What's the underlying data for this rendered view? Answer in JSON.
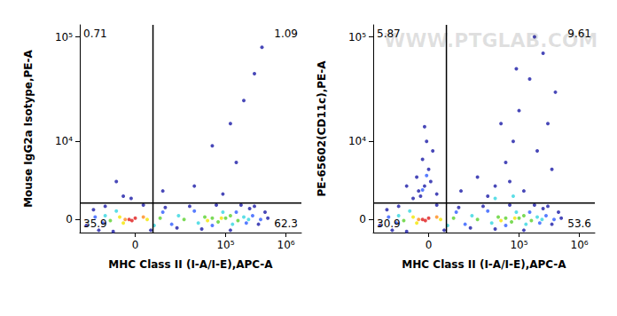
{
  "chart_data": [
    {
      "type": "scatter",
      "x_label": "MHC Class II (I-A/I-E),APC-A",
      "y_label": "Mouse IgG2a Isotype,PE-A",
      "xlim": [
        -26000,
        1800000
      ],
      "ylim": [
        -1100,
        130000
      ],
      "xticks": [
        0,
        {
          "value": 100000,
          "label": "10⁵"
        },
        {
          "value": 1000000,
          "label": "10⁶"
        }
      ],
      "yticks": [
        0,
        {
          "value": 10000,
          "label": "10⁴"
        },
        {
          "value": 100000,
          "label": "10⁵"
        }
      ],
      "gates": {
        "x": 4650,
        "y": 1380
      },
      "quadrants": {
        "top_left": 0.71,
        "top_right": 1.09,
        "bottom_left": 35.9,
        "bottom_right": 62.3
      },
      "points": [
        [
          -20000,
          -500,
          "#1a1aa6"
        ],
        [
          -15000,
          800,
          "#1a1aa6"
        ],
        [
          -12000,
          -900,
          "#1a1aa6"
        ],
        [
          -9000,
          1100,
          "#1a1aa6"
        ],
        [
          -6000,
          -1000,
          "#1a1aa6"
        ],
        [
          2000,
          1200,
          "#1a1aa6"
        ],
        [
          4000,
          -900,
          "#1a1aa6"
        ],
        [
          9000,
          1000,
          "#1a1aa6"
        ],
        [
          15000,
          -700,
          "#1a1aa6"
        ],
        [
          25000,
          1100,
          "#1a1aa6"
        ],
        [
          40000,
          -800,
          "#1a1aa6"
        ],
        [
          70000,
          1200,
          "#1a1aa6"
        ],
        [
          120000,
          -900,
          "#1a1aa6"
        ],
        [
          250000,
          900,
          "#1a1aa6"
        ],
        [
          350000,
          -400,
          "#1a1aa6"
        ],
        [
          450000,
          600,
          "#1a1aa6"
        ],
        [
          300000,
          1100,
          "#1a1aa6"
        ],
        [
          180000,
          1200,
          "#1a1aa6"
        ],
        [
          500000,
          100,
          "#1a1aa6"
        ],
        [
          -3000,
          2000,
          "#1a1aa6"
        ],
        [
          -1000,
          1800,
          "#1a1aa6"
        ],
        [
          8000,
          2500,
          "#1a1aa6"
        ],
        [
          30000,
          3000,
          "#1a1aa6"
        ],
        [
          60000,
          9000,
          "#1a1aa6"
        ],
        [
          120000,
          15000,
          "#1a1aa6"
        ],
        [
          200000,
          25000,
          "#1a1aa6"
        ],
        [
          300000,
          45000,
          "#1a1aa6"
        ],
        [
          150000,
          6000,
          "#1a1aa6"
        ],
        [
          -5000,
          3500,
          "#1a1aa6"
        ],
        [
          400000,
          80000,
          "#1a1aa6"
        ],
        [
          90000,
          2200,
          "#1a1aa6"
        ],
        [
          -14000,
          200,
          "#2f5cff"
        ],
        [
          -10000,
          -300,
          "#2f5cff"
        ],
        [
          8000,
          600,
          "#2f5cff"
        ],
        [
          12000,
          -400,
          "#2f5cff"
        ],
        [
          30000,
          700,
          "#2f5cff"
        ],
        [
          60000,
          -500,
          "#2f5cff"
        ],
        [
          150000,
          600,
          "#2f5cff"
        ],
        [
          220000,
          -300,
          "#2f5cff"
        ],
        [
          280000,
          300,
          "#2f5cff"
        ],
        [
          380000,
          0,
          "#2f5cff"
        ],
        [
          -9000,
          300,
          "#33d6e0"
        ],
        [
          -5000,
          700,
          "#33d6e0"
        ],
        [
          5000,
          -500,
          "#33d6e0"
        ],
        [
          16000,
          300,
          "#33d6e0"
        ],
        [
          35000,
          -300,
          "#33d6e0"
        ],
        [
          90000,
          600,
          "#33d6e0"
        ],
        [
          130000,
          -400,
          "#33d6e0"
        ],
        [
          200000,
          200,
          "#33d6e0"
        ],
        [
          240000,
          0,
          "#33d6e0"
        ],
        [
          -7000,
          -100,
          "#5ad12d"
        ],
        [
          7000,
          100,
          "#5ad12d"
        ],
        [
          20000,
          0,
          "#5ad12d"
        ],
        [
          45000,
          200,
          "#5ad12d"
        ],
        [
          60000,
          100,
          "#5ad12d"
        ],
        [
          75000,
          -200,
          "#5ad12d"
        ],
        [
          100000,
          100,
          "#5ad12d"
        ],
        [
          120000,
          300,
          "#5ad12d"
        ],
        [
          160000,
          -100,
          "#5ad12d"
        ],
        [
          -4000,
          200,
          "#f2e600"
        ],
        [
          -3000,
          -300,
          "#f2e600"
        ],
        [
          3000,
          0,
          "#f2e600"
        ],
        [
          50000,
          -100,
          "#f2e600"
        ],
        [
          85000,
          100,
          "#f2e600"
        ],
        [
          -2500,
          0,
          "#ff8c1a"
        ],
        [
          2000,
          200,
          "#ff8c1a"
        ],
        [
          -1500,
          0,
          "#e01b1b"
        ],
        [
          0,
          100,
          "#e01b1b"
        ],
        [
          -800,
          -100,
          "#e01b1b"
        ]
      ]
    },
    {
      "type": "scatter",
      "x_label": "MHC Class II (I-A/I-E),APC-A",
      "y_label": "PE-65602(CD11c),PE-A",
      "watermark": "WWW.PTGLAB.COM",
      "xlim": [
        -26000,
        1800000
      ],
      "ylim": [
        -1100,
        130000
      ],
      "xticks": [
        0,
        {
          "value": 100000,
          "label": "10⁵"
        },
        {
          "value": 1000000,
          "label": "10⁶"
        }
      ],
      "yticks": [
        0,
        {
          "value": 10000,
          "label": "10⁴"
        },
        {
          "value": 100000,
          "label": "10⁵"
        }
      ],
      "gates": {
        "x": 4650,
        "y": 1380
      },
      "quadrants": {
        "top_left": 5.87,
        "top_right": 9.61,
        "bottom_left": 30.9,
        "bottom_right": 53.6
      },
      "points": [
        [
          -20000,
          -500,
          "#1a1aa6"
        ],
        [
          -15000,
          800,
          "#1a1aa6"
        ],
        [
          -12000,
          -900,
          "#1a1aa6"
        ],
        [
          -9000,
          1100,
          "#1a1aa6"
        ],
        [
          -6000,
          -1000,
          "#1a1aa6"
        ],
        [
          2000,
          1200,
          "#1a1aa6"
        ],
        [
          4000,
          -900,
          "#1a1aa6"
        ],
        [
          9000,
          1000,
          "#1a1aa6"
        ],
        [
          15000,
          -700,
          "#1a1aa6"
        ],
        [
          25000,
          1100,
          "#1a1aa6"
        ],
        [
          40000,
          -800,
          "#1a1aa6"
        ],
        [
          70000,
          1200,
          "#1a1aa6"
        ],
        [
          120000,
          -900,
          "#1a1aa6"
        ],
        [
          250000,
          900,
          "#1a1aa6"
        ],
        [
          350000,
          -400,
          "#1a1aa6"
        ],
        [
          450000,
          600,
          "#1a1aa6"
        ],
        [
          300000,
          1100,
          "#1a1aa6"
        ],
        [
          180000,
          1200,
          "#1a1aa6"
        ],
        [
          500000,
          100,
          "#1a1aa6"
        ],
        [
          -2000,
          2000,
          "#1a1aa6"
        ],
        [
          -1000,
          3000,
          "#1a1aa6"
        ],
        [
          -3000,
          4000,
          "#1a1aa6"
        ],
        [
          0,
          5000,
          "#1a1aa6"
        ],
        [
          -1500,
          6500,
          "#1a1aa6"
        ],
        [
          1000,
          8000,
          "#1a1aa6"
        ],
        [
          -500,
          10000,
          "#1a1aa6"
        ],
        [
          -2500,
          2500,
          "#1a1aa6"
        ],
        [
          500,
          3500,
          "#1a1aa6"
        ],
        [
          -4000,
          1800,
          "#1a1aa6"
        ],
        [
          2000,
          2200,
          "#1a1aa6"
        ],
        [
          -1000,
          14000,
          "#1a1aa6"
        ],
        [
          -6000,
          3000,
          "#1a1aa6"
        ],
        [
          10000,
          2500,
          "#1a1aa6"
        ],
        [
          20000,
          4000,
          "#1a1aa6"
        ],
        [
          40000,
          3000,
          "#1a1aa6"
        ],
        [
          60000,
          6000,
          "#1a1aa6"
        ],
        [
          80000,
          10000,
          "#1a1aa6"
        ],
        [
          100000,
          20000,
          "#1a1aa6"
        ],
        [
          150000,
          40000,
          "#1a1aa6"
        ],
        [
          200000,
          8000,
          "#1a1aa6"
        ],
        [
          300000,
          15000,
          "#1a1aa6"
        ],
        [
          250000,
          70000,
          "#1a1aa6"
        ],
        [
          400000,
          30000,
          "#1a1aa6"
        ],
        [
          50000,
          15000,
          "#1a1aa6"
        ],
        [
          120000,
          2500,
          "#1a1aa6"
        ],
        [
          180000,
          100000,
          "#1a1aa6"
        ],
        [
          30000,
          2000,
          "#1a1aa6"
        ],
        [
          70000,
          3500,
          "#1a1aa6"
        ],
        [
          350000,
          5000,
          "#1a1aa6"
        ],
        [
          90000,
          50000,
          "#1a1aa6"
        ],
        [
          -14000,
          200,
          "#2f5cff"
        ],
        [
          -10000,
          -300,
          "#2f5cff"
        ],
        [
          8000,
          600,
          "#2f5cff"
        ],
        [
          12000,
          -400,
          "#2f5cff"
        ],
        [
          30000,
          700,
          "#2f5cff"
        ],
        [
          60000,
          -500,
          "#2f5cff"
        ],
        [
          150000,
          600,
          "#2f5cff"
        ],
        [
          220000,
          -300,
          "#2f5cff"
        ],
        [
          280000,
          300,
          "#2f5cff"
        ],
        [
          380000,
          0,
          "#2f5cff"
        ],
        [
          -1500,
          2600,
          "#2f5cff"
        ],
        [
          -500,
          4200,
          "#2f5cff"
        ],
        [
          -9000,
          300,
          "#33d6e0"
        ],
        [
          -5000,
          700,
          "#33d6e0"
        ],
        [
          5000,
          -500,
          "#33d6e0"
        ],
        [
          16000,
          300,
          "#33d6e0"
        ],
        [
          35000,
          -300,
          "#33d6e0"
        ],
        [
          90000,
          600,
          "#33d6e0"
        ],
        [
          130000,
          -400,
          "#33d6e0"
        ],
        [
          200000,
          200,
          "#33d6e0"
        ],
        [
          240000,
          0,
          "#33d6e0"
        ],
        [
          40000,
          1800,
          "#33d6e0"
        ],
        [
          80000,
          2000,
          "#33d6e0"
        ],
        [
          -7000,
          -100,
          "#5ad12d"
        ],
        [
          7000,
          100,
          "#5ad12d"
        ],
        [
          20000,
          0,
          "#5ad12d"
        ],
        [
          45000,
          200,
          "#5ad12d"
        ],
        [
          60000,
          100,
          "#5ad12d"
        ],
        [
          75000,
          -200,
          "#5ad12d"
        ],
        [
          100000,
          100,
          "#5ad12d"
        ],
        [
          120000,
          300,
          "#5ad12d"
        ],
        [
          160000,
          -100,
          "#5ad12d"
        ],
        [
          -4000,
          200,
          "#f2e600"
        ],
        [
          -3000,
          -300,
          "#f2e600"
        ],
        [
          3000,
          0,
          "#f2e600"
        ],
        [
          50000,
          -100,
          "#f2e600"
        ],
        [
          85000,
          100,
          "#f2e600"
        ],
        [
          -2500,
          0,
          "#ff8c1a"
        ],
        [
          2000,
          200,
          "#ff8c1a"
        ],
        [
          -1500,
          0,
          "#e01b1b"
        ],
        [
          0,
          100,
          "#e01b1b"
        ],
        [
          -800,
          -100,
          "#e01b1b"
        ]
      ]
    }
  ]
}
